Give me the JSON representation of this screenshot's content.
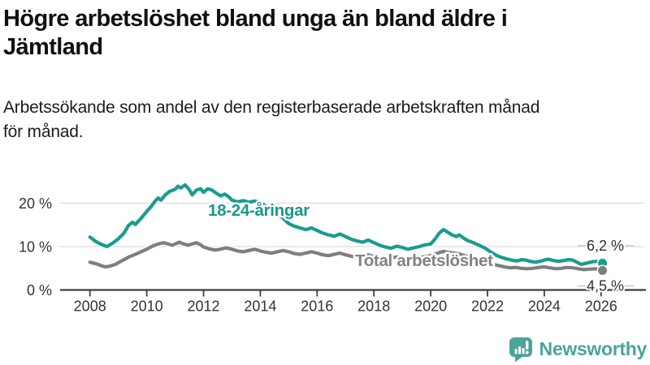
{
  "header": {
    "title_lines": [
      "Högre arbetslöshet bland unga än bland äldre i",
      "Jämtland"
    ],
    "subtitle_lines": [
      "Arbetssökande som andel av den registerbaserade arbetskraften månad",
      "för månad."
    ]
  },
  "chart_data": {
    "type": "line",
    "title": "Högre arbetslöshet bland unga än bland äldre i Jämtland",
    "subtitle": "Arbetssökande som andel av den registerbaserade arbetskraften månad för månad.",
    "xlabel": "",
    "ylabel": "",
    "unit": "%",
    "grid": true,
    "xlim": [
      2007.7,
      2026.4
    ],
    "ylim": [
      0,
      26
    ],
    "yticks": [
      {
        "value": 0,
        "label": "0 %"
      },
      {
        "value": 10,
        "label": "10 %"
      },
      {
        "value": 20,
        "label": "20 %"
      }
    ],
    "xticks": [
      {
        "value": 2008,
        "label": "2008"
      },
      {
        "value": 2010,
        "label": "2010"
      },
      {
        "value": 2012,
        "label": "2012"
      },
      {
        "value": 2014,
        "label": "2014"
      },
      {
        "value": 2016,
        "label": "2016"
      },
      {
        "value": 2018,
        "label": "2018"
      },
      {
        "value": 2020,
        "label": "2020"
      },
      {
        "value": 2022,
        "label": "2022"
      },
      {
        "value": 2024,
        "label": "2024"
      },
      {
        "value": 2026,
        "label": "2026"
      }
    ],
    "series": [
      {
        "name": "18-24-åringar",
        "color": "#199C8E",
        "label_color": "#17988A",
        "end_label": "6,2 %",
        "end_value": 6.2,
        "points": [
          [
            2008.0,
            12.2
          ],
          [
            2008.2,
            11.2
          ],
          [
            2008.4,
            10.5
          ],
          [
            2008.6,
            10.0
          ],
          [
            2008.8,
            10.8
          ],
          [
            2009.0,
            11.8
          ],
          [
            2009.2,
            13.1
          ],
          [
            2009.35,
            14.8
          ],
          [
            2009.5,
            15.6
          ],
          [
            2009.6,
            15.1
          ],
          [
            2009.8,
            16.5
          ],
          [
            2010.0,
            18.1
          ],
          [
            2010.15,
            19.2
          ],
          [
            2010.3,
            20.5
          ],
          [
            2010.4,
            21.2
          ],
          [
            2010.5,
            20.7
          ],
          [
            2010.65,
            21.9
          ],
          [
            2010.8,
            22.7
          ],
          [
            2011.0,
            23.2
          ],
          [
            2011.1,
            23.9
          ],
          [
            2011.2,
            23.5
          ],
          [
            2011.35,
            24.2
          ],
          [
            2011.5,
            23.1
          ],
          [
            2011.6,
            21.9
          ],
          [
            2011.75,
            23.0
          ],
          [
            2011.9,
            23.3
          ],
          [
            2012.0,
            22.5
          ],
          [
            2012.15,
            23.3
          ],
          [
            2012.3,
            23.0
          ],
          [
            2012.45,
            22.3
          ],
          [
            2012.6,
            21.7
          ],
          [
            2012.75,
            22.1
          ],
          [
            2012.9,
            21.4
          ],
          [
            2013.0,
            20.7
          ],
          [
            2013.2,
            20.3
          ],
          [
            2013.4,
            20.6
          ],
          [
            2013.6,
            20.2
          ],
          [
            2013.8,
            20.5
          ],
          [
            2014.0,
            20.1
          ],
          [
            2014.3,
            19.0
          ],
          [
            2014.6,
            17.6
          ],
          [
            2014.8,
            16.5
          ],
          [
            2015.0,
            15.3
          ],
          [
            2015.2,
            14.7
          ],
          [
            2015.4,
            14.3
          ],
          [
            2015.6,
            13.9
          ],
          [
            2015.8,
            14.3
          ],
          [
            2016.0,
            13.7
          ],
          [
            2016.2,
            13.1
          ],
          [
            2016.4,
            12.7
          ],
          [
            2016.6,
            12.4
          ],
          [
            2016.8,
            12.9
          ],
          [
            2017.0,
            12.3
          ],
          [
            2017.2,
            11.7
          ],
          [
            2017.4,
            11.3
          ],
          [
            2017.6,
            11.0
          ],
          [
            2017.8,
            11.5
          ],
          [
            2018.0,
            10.9
          ],
          [
            2018.2,
            10.3
          ],
          [
            2018.4,
            9.9
          ],
          [
            2018.6,
            9.6
          ],
          [
            2018.8,
            10.1
          ],
          [
            2019.0,
            9.8
          ],
          [
            2019.2,
            9.4
          ],
          [
            2019.4,
            9.7
          ],
          [
            2019.6,
            10.0
          ],
          [
            2019.8,
            10.4
          ],
          [
            2020.0,
            10.6
          ],
          [
            2020.15,
            11.7
          ],
          [
            2020.3,
            13.1
          ],
          [
            2020.45,
            13.9
          ],
          [
            2020.6,
            13.3
          ],
          [
            2020.75,
            12.7
          ],
          [
            2020.9,
            12.3
          ],
          [
            2021.0,
            12.7
          ],
          [
            2021.15,
            12.0
          ],
          [
            2021.3,
            11.4
          ],
          [
            2021.5,
            10.9
          ],
          [
            2021.7,
            10.3
          ],
          [
            2021.9,
            9.7
          ],
          [
            2022.1,
            8.8
          ],
          [
            2022.3,
            8.0
          ],
          [
            2022.5,
            7.5
          ],
          [
            2022.7,
            7.1
          ],
          [
            2022.9,
            6.8
          ],
          [
            2023.05,
            6.7
          ],
          [
            2023.2,
            7.0
          ],
          [
            2023.35,
            6.9
          ],
          [
            2023.5,
            6.6
          ],
          [
            2023.7,
            6.4
          ],
          [
            2023.85,
            6.6
          ],
          [
            2024.0,
            6.9
          ],
          [
            2024.15,
            7.1
          ],
          [
            2024.3,
            6.8
          ],
          [
            2024.5,
            6.6
          ],
          [
            2024.7,
            6.8
          ],
          [
            2024.85,
            7.0
          ],
          [
            2025.0,
            6.9
          ],
          [
            2025.15,
            6.4
          ],
          [
            2025.3,
            5.9
          ],
          [
            2025.5,
            6.2
          ],
          [
            2025.7,
            6.5
          ],
          [
            2025.85,
            6.6
          ],
          [
            2026.05,
            6.2
          ]
        ]
      },
      {
        "name": "Total arbetslöshet",
        "color": "#7F7F7F",
        "label_color": "#828282",
        "end_label": "4,5 %",
        "end_value": 4.5,
        "points": [
          [
            2008.0,
            6.4
          ],
          [
            2008.2,
            6.1
          ],
          [
            2008.4,
            5.6
          ],
          [
            2008.55,
            5.3
          ],
          [
            2008.7,
            5.5
          ],
          [
            2008.9,
            5.9
          ],
          [
            2009.0,
            6.3
          ],
          [
            2009.2,
            7.0
          ],
          [
            2009.4,
            7.7
          ],
          [
            2009.6,
            8.2
          ],
          [
            2009.8,
            8.8
          ],
          [
            2010.0,
            9.4
          ],
          [
            2010.2,
            10.1
          ],
          [
            2010.4,
            10.6
          ],
          [
            2010.6,
            10.9
          ],
          [
            2010.75,
            10.6
          ],
          [
            2010.9,
            10.3
          ],
          [
            2011.0,
            10.6
          ],
          [
            2011.15,
            11.0
          ],
          [
            2011.3,
            10.6
          ],
          [
            2011.45,
            10.3
          ],
          [
            2011.6,
            10.6
          ],
          [
            2011.75,
            10.9
          ],
          [
            2011.9,
            10.4
          ],
          [
            2012.0,
            9.9
          ],
          [
            2012.2,
            9.5
          ],
          [
            2012.4,
            9.2
          ],
          [
            2012.6,
            9.4
          ],
          [
            2012.8,
            9.7
          ],
          [
            2013.0,
            9.4
          ],
          [
            2013.2,
            9.0
          ],
          [
            2013.4,
            8.8
          ],
          [
            2013.6,
            9.1
          ],
          [
            2013.8,
            9.4
          ],
          [
            2014.0,
            9.0
          ],
          [
            2014.2,
            8.7
          ],
          [
            2014.4,
            8.5
          ],
          [
            2014.6,
            8.8
          ],
          [
            2014.8,
            9.1
          ],
          [
            2015.0,
            8.8
          ],
          [
            2015.2,
            8.4
          ],
          [
            2015.4,
            8.2
          ],
          [
            2015.6,
            8.5
          ],
          [
            2015.8,
            8.8
          ],
          [
            2016.0,
            8.5
          ],
          [
            2016.2,
            8.1
          ],
          [
            2016.4,
            7.9
          ],
          [
            2016.6,
            8.2
          ],
          [
            2016.8,
            8.5
          ],
          [
            2017.0,
            8.1
          ],
          [
            2017.2,
            7.8
          ],
          [
            2017.4,
            7.6
          ],
          [
            2017.6,
            7.9
          ],
          [
            2017.8,
            8.1
          ],
          [
            2018.0,
            7.7
          ],
          [
            2018.2,
            7.4
          ],
          [
            2018.4,
            7.2
          ],
          [
            2018.6,
            7.4
          ],
          [
            2018.8,
            7.6
          ],
          [
            2019.0,
            7.4
          ],
          [
            2019.2,
            7.1
          ],
          [
            2019.4,
            7.3
          ],
          [
            2019.6,
            7.5
          ],
          [
            2019.8,
            7.7
          ],
          [
            2020.0,
            7.9
          ],
          [
            2020.2,
            8.4
          ],
          [
            2020.45,
            8.9
          ],
          [
            2020.6,
            8.7
          ],
          [
            2020.8,
            8.5
          ],
          [
            2021.0,
            8.3
          ],
          [
            2021.2,
            7.9
          ],
          [
            2021.4,
            7.5
          ],
          [
            2021.6,
            7.1
          ],
          [
            2021.8,
            6.7
          ],
          [
            2022.0,
            6.3
          ],
          [
            2022.2,
            5.9
          ],
          [
            2022.4,
            5.6
          ],
          [
            2022.6,
            5.3
          ],
          [
            2022.8,
            5.1
          ],
          [
            2023.0,
            5.2
          ],
          [
            2023.2,
            5.0
          ],
          [
            2023.4,
            4.9
          ],
          [
            2023.6,
            5.0
          ],
          [
            2023.8,
            5.2
          ],
          [
            2024.0,
            5.3
          ],
          [
            2024.2,
            5.1
          ],
          [
            2024.4,
            4.9
          ],
          [
            2024.6,
            5.0
          ],
          [
            2024.8,
            5.2
          ],
          [
            2025.0,
            5.1
          ],
          [
            2025.2,
            4.9
          ],
          [
            2025.4,
            4.7
          ],
          [
            2025.6,
            4.8
          ],
          [
            2025.8,
            4.9
          ],
          [
            2026.05,
            4.5
          ]
        ]
      }
    ],
    "legend_position": "inline-labels"
  },
  "colors": {
    "accent_teal": "#199C8E",
    "neutral_gray": "#7F7F7F",
    "grid": "#DBDBDB",
    "axis": "#3D3D3D",
    "tick_text": "#333333",
    "logo": "#4BA39B"
  },
  "logo": {
    "text": "Newsworthy"
  }
}
